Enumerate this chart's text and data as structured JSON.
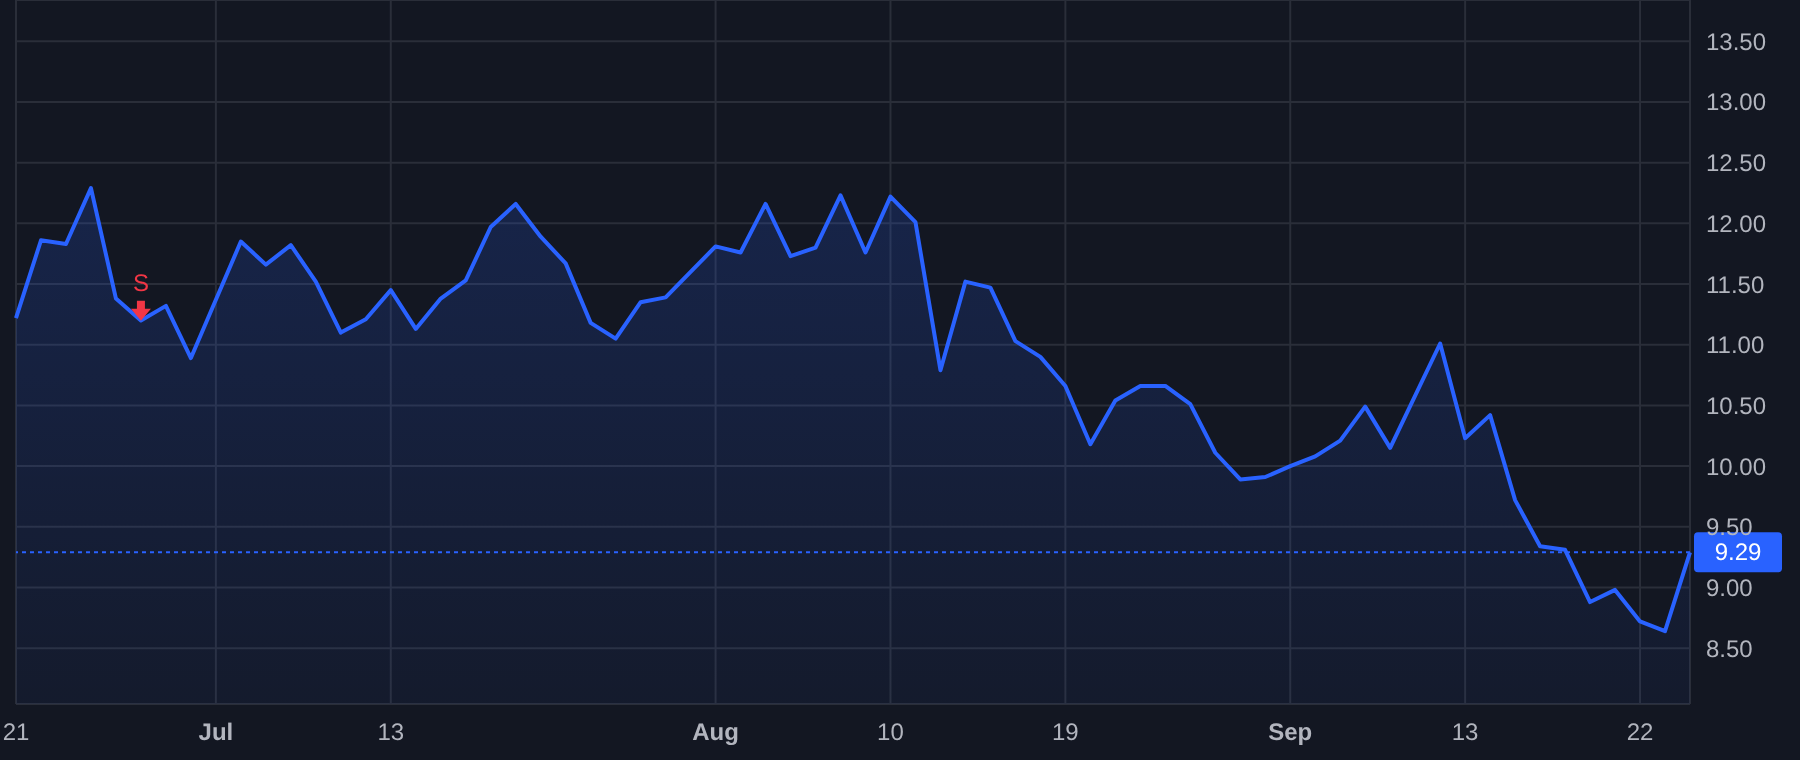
{
  "chart_data": {
    "type": "area",
    "categories": [
      "21",
      null,
      null,
      null,
      null,
      null,
      null,
      null,
      "Jul",
      null,
      null,
      null,
      null,
      null,
      null,
      "13",
      null,
      null,
      null,
      null,
      null,
      null,
      null,
      null,
      null,
      null,
      null,
      null,
      "Aug",
      null,
      null,
      null,
      null,
      null,
      null,
      "10",
      null,
      null,
      null,
      null,
      null,
      null,
      "19",
      null,
      null,
      null,
      null,
      null,
      null,
      null,
      null,
      "Sep",
      null,
      null,
      null,
      null,
      null,
      null,
      "13",
      null,
      null,
      null,
      null,
      null,
      null,
      "22",
      null,
      null
    ],
    "series": [
      {
        "color": "#2962ff",
        "values": [
          11.22,
          11.86,
          11.83,
          12.29,
          11.38,
          11.2,
          11.32,
          10.89,
          11.37,
          11.85,
          11.66,
          11.82,
          11.52,
          11.1,
          11.21,
          11.45,
          11.13,
          11.38,
          11.53,
          11.97,
          12.16,
          11.89,
          11.67,
          11.18,
          11.05,
          11.35,
          11.39,
          11.6,
          11.81,
          11.76,
          12.16,
          11.73,
          11.8,
          12.23,
          11.76,
          12.22,
          12.01,
          10.79,
          11.52,
          11.47,
          11.03,
          10.9,
          10.66,
          10.18,
          10.54,
          10.66,
          10.66,
          10.51,
          10.11,
          9.89,
          9.91,
          10.0,
          10.08,
          10.21,
          10.49,
          10.15,
          10.58,
          11.01,
          10.23,
          10.42,
          9.72,
          9.34,
          9.31,
          8.88,
          8.98,
          8.72,
          8.64,
          9.29
        ]
      },
      {
        "type": "scatter",
        "color": "#f23645",
        "values": [
          null,
          null,
          null,
          null,
          null,
          11.28,
          null,
          null,
          null,
          null,
          null,
          null,
          null,
          null,
          null,
          null,
          null,
          null,
          null,
          null,
          null,
          null,
          null,
          null,
          null,
          null,
          null,
          null,
          null,
          null,
          null,
          null,
          null,
          null,
          null,
          null,
          null,
          null,
          null,
          null,
          null,
          null,
          null,
          null,
          null,
          null,
          null,
          null,
          null,
          null,
          null,
          null,
          null,
          null,
          null,
          null,
          null,
          null,
          null,
          null,
          null,
          null,
          null,
          null,
          null,
          null,
          null,
          null
        ]
      }
    ],
    "annotations": [
      "S"
    ],
    "ylim": [
      8.04,
      13.84
    ],
    "yticks": [
      {
        "value": 8.5,
        "label": "8.50"
      },
      {
        "value": 9,
        "label": "9.00"
      },
      {
        "value": 9.5,
        "label": "9.50"
      },
      {
        "value": 10,
        "label": "10.00"
      },
      {
        "value": 10.5,
        "label": "10.50"
      },
      {
        "value": 11,
        "label": "11.00"
      },
      {
        "value": 11.5,
        "label": "11.50"
      },
      {
        "value": 12,
        "label": "12.00"
      },
      {
        "value": 12.5,
        "label": "12.50"
      },
      {
        "value": 13,
        "label": "13.00"
      },
      {
        "value": 13.5,
        "label": "13.50"
      }
    ],
    "grid": true,
    "ref_lines": [
      {
        "axis": "y",
        "value": 9.29,
        "label": "9.29",
        "color": "#2962ff",
        "line_style": "dotted"
      }
    ]
  }
}
